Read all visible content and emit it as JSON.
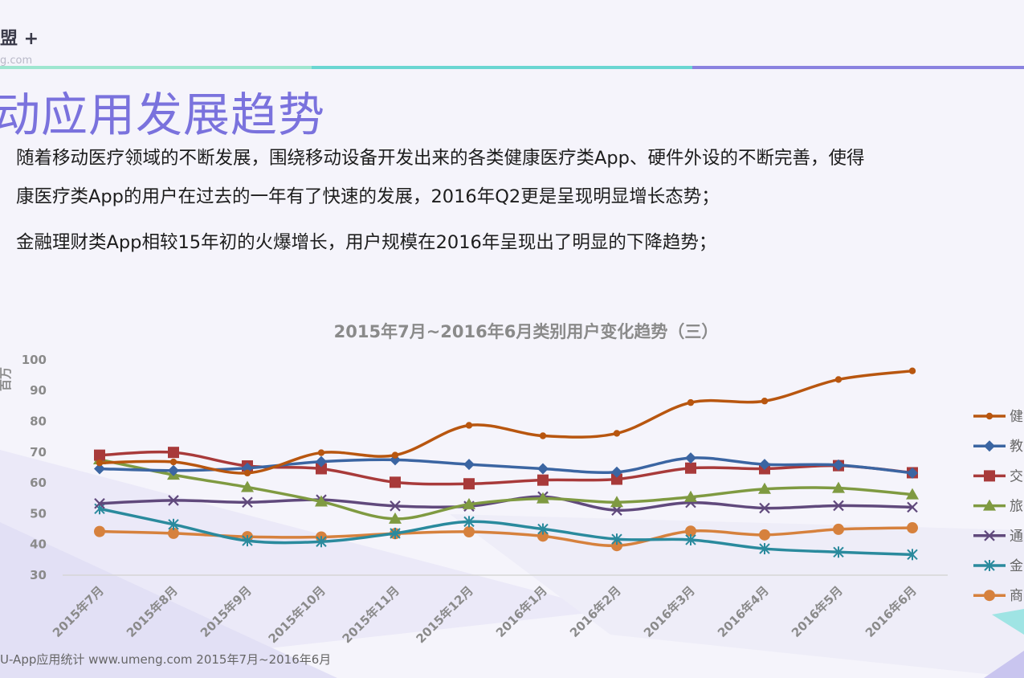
{
  "header": {
    "brand": "盟 +",
    "brand_sub": "g.com",
    "title": "动应用发展趋势"
  },
  "body_text": {
    "line1": "随着移动医疗领域的不断发展，围绕移动设备开发出来的各类健康医疗类App、硬件外设的不断完善，使得",
    "line2": "康医疗类App的用户在过去的一年有了快速的发展，2016年Q2更是呈现明显增长态势；",
    "line3": "金融理财类App相较15年初的火爆增长，用户规模在2016年呈现出了明显的下降趋势；"
  },
  "footer": {
    "source": "U-App应用统计   www.umeng.com 2015年7月~2016年6月"
  },
  "colors": {
    "accent": "#7a72dd",
    "topline": [
      "#8de0c8",
      "#5fd0cf",
      "#8a82e0"
    ]
  },
  "chart_data": {
    "type": "line",
    "title": "2015年7月~2016年6月类别用户变化趋势（三）",
    "ylabel": "百万",
    "ylim": [
      30,
      100
    ],
    "yticks": [
      30,
      40,
      50,
      60,
      70,
      80,
      90,
      100
    ],
    "grid": false,
    "legend_position": "right",
    "categories": [
      "2015年7月",
      "2015年8月",
      "2015年9月",
      "2015年10月",
      "2015年11月",
      "2015年12月",
      "2016年1月",
      "2016年2月",
      "2016年3月",
      "2016年4月",
      "2016年5月",
      "2016年6月"
    ],
    "series": [
      {
        "name": "健",
        "color": "#b8560f",
        "marker": "circle-small",
        "values": [
          66.5,
          66.8,
          63.2,
          69.8,
          69.0,
          78.7,
          75.3,
          76.1,
          86.1,
          86.6,
          93.6,
          96.4
        ]
      },
      {
        "name": "教",
        "color": "#3b65a2",
        "marker": "diamond",
        "values": [
          64.6,
          64.0,
          64.8,
          66.9,
          67.5,
          66.0,
          64.6,
          63.5,
          68.1,
          66.0,
          65.8,
          63.2
        ]
      },
      {
        "name": "交",
        "color": "#a83a3a",
        "marker": "square",
        "values": [
          69.0,
          69.9,
          65.5,
          64.6,
          60.2,
          59.7,
          60.9,
          61.2,
          64.8,
          64.6,
          65.6,
          63.3
        ]
      },
      {
        "name": "旅",
        "color": "#7f9a41",
        "marker": "triangle",
        "values": [
          67.6,
          62.6,
          58.6,
          53.9,
          48.3,
          53.0,
          54.9,
          53.7,
          55.4,
          58.0,
          58.3,
          56.2
        ]
      },
      {
        "name": "通",
        "color": "#60497c",
        "marker": "x",
        "values": [
          53.3,
          54.3,
          53.7,
          54.5,
          52.5,
          52.4,
          55.5,
          51.1,
          53.6,
          51.8,
          52.6,
          52.1
        ]
      },
      {
        "name": "金",
        "color": "#2a8a9d",
        "marker": "star",
        "values": [
          51.6,
          46.5,
          41.2,
          40.9,
          43.6,
          47.4,
          45.0,
          41.7,
          41.5,
          38.6,
          37.5,
          36.7
        ]
      },
      {
        "name": "商",
        "color": "#d6813d",
        "marker": "circle",
        "values": [
          44.2,
          43.6,
          42.5,
          42.4,
          43.5,
          44.1,
          42.7,
          39.6,
          44.3,
          43.1,
          44.9,
          45.4
        ]
      }
    ]
  }
}
